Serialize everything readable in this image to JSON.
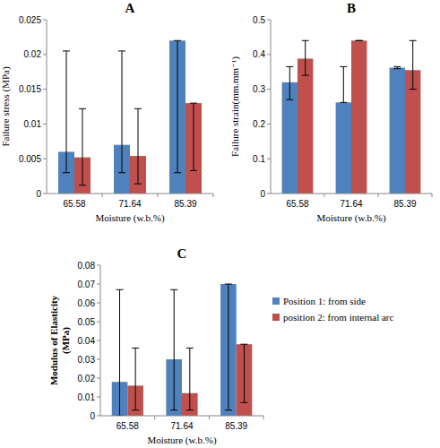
{
  "chart_data": [
    {
      "type": "bar",
      "title": "A",
      "x_label": "Moisture (w.b.%)",
      "y_label": "Failure stress (MPa)",
      "categories": [
        "65.58",
        "71.64",
        "85.39"
      ],
      "series": [
        {
          "color": "#4f81bd",
          "values": [
            0.006,
            0.007,
            0.022
          ],
          "error_minus": [
            0.003,
            0.004,
            0.019
          ],
          "error_plus": [
            0.0145,
            0.0135,
            0
          ]
        },
        {
          "color": "#c0504d",
          "values": [
            0.0052,
            0.0054,
            0.013
          ],
          "error_minus": [
            0.004,
            0.004,
            0.0097
          ],
          "error_plus": [
            0.007,
            0.0068,
            0
          ]
        }
      ],
      "ylim": [
        0,
        0.025
      ],
      "yticks": [
        0,
        0.005,
        0.01,
        0.015,
        0.02,
        0.025
      ],
      "grid": false
    },
    {
      "type": "bar",
      "title": "B",
      "x_label": "Moisture (w.b.%)",
      "y_label": "Failure strain(mm.mm⁻¹)",
      "categories": [
        "65.58",
        "71.64",
        "85.39"
      ],
      "series": [
        {
          "color": "#4f81bd",
          "values": [
            0.32,
            0.262,
            0.362
          ],
          "error_minus": [
            0.05,
            0,
            0.003
          ],
          "error_plus": [
            0.045,
            0.103,
            0.003
          ]
        },
        {
          "color": "#c0504d",
          "values": [
            0.388,
            0.44,
            0.355
          ],
          "error_minus": [
            0.048,
            0,
            0.055
          ],
          "error_plus": [
            0.052,
            0,
            0.085
          ]
        }
      ],
      "ylim": [
        0,
        0.5
      ],
      "yticks": [
        0,
        0.1,
        0.2,
        0.3,
        0.4,
        0.5
      ],
      "grid": false
    },
    {
      "type": "bar",
      "title": "C",
      "x_label": "Moisture (w.b.%)",
      "y_label": "Modulus of Elasticity (MPa)",
      "categories": [
        "65.58",
        "71.64",
        "85.39"
      ],
      "series": [
        {
          "name": "Position 1: from side",
          "color": "#4f81bd",
          "values": [
            0.018,
            0.03,
            0.07
          ],
          "error_minus": [
            0.018,
            0.027,
            0.067
          ],
          "error_plus": [
            0.049,
            0.037,
            0
          ]
        },
        {
          "name": "position 2: from internal arc",
          "color": "#c0504d",
          "values": [
            0.016,
            0.012,
            0.038
          ],
          "error_minus": [
            0.013,
            0.009,
            0.031
          ],
          "error_plus": [
            0.02,
            0.024,
            0
          ]
        }
      ],
      "ylim": [
        0,
        0.08
      ],
      "yticks": [
        0,
        0.01,
        0.02,
        0.03,
        0.04,
        0.05,
        0.06,
        0.07,
        0.08
      ],
      "grid": false,
      "legend": "right"
    }
  ]
}
